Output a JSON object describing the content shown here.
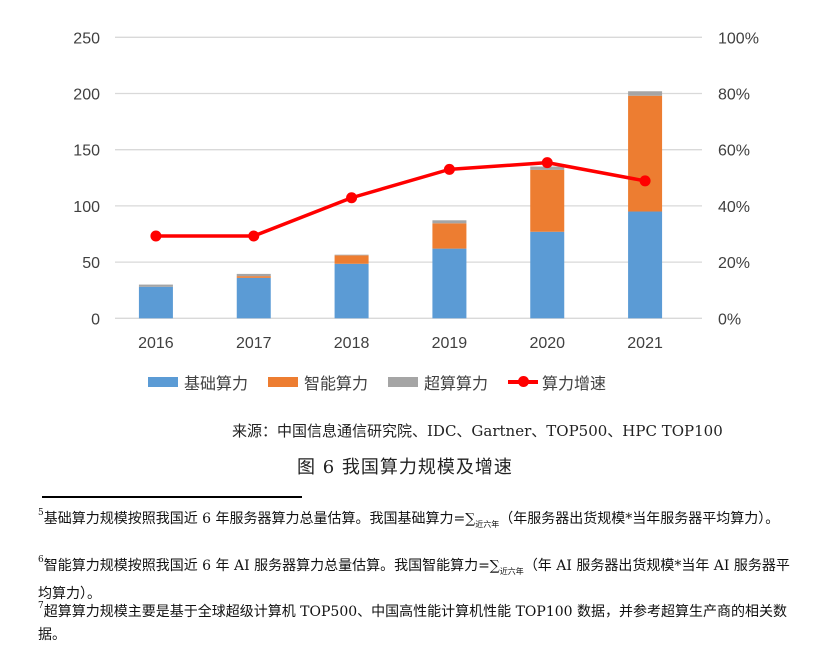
{
  "chart_data": {
    "type": "bar",
    "stacked": true,
    "categories": [
      "2016",
      "2017",
      "2018",
      "2019",
      "2020",
      "2021"
    ],
    "series": [
      {
        "name": "基础算力",
        "type": "bar",
        "axis": "left",
        "color": "#5b9bd5",
        "values": [
          28,
          36,
          48.5,
          62,
          77,
          95
        ]
      },
      {
        "name": "智能算力",
        "type": "bar",
        "axis": "left",
        "color": "#ed7d31",
        "values": [
          0,
          1.5,
          7.5,
          22.5,
          55,
          103
        ]
      },
      {
        "name": "超算算力",
        "type": "bar",
        "axis": "left",
        "color": "#a5a5a5",
        "values": [
          2,
          2,
          0.6,
          2.7,
          3,
          4
        ]
      },
      {
        "name": "算力增速",
        "type": "line",
        "axis": "right",
        "color": "#ff0000",
        "values": [
          29.3,
          29.3,
          42.9,
          53,
          55.4,
          48.9
        ]
      }
    ],
    "ylim": [
      0,
      250
    ],
    "yticks": [
      "0",
      "50",
      "100",
      "150",
      "200",
      "250"
    ],
    "y2lim": [
      0,
      100
    ],
    "y2ticks": [
      "0%",
      "20%",
      "40%",
      "60%",
      "80%",
      "100%"
    ],
    "grid": true,
    "legend": "bottom"
  },
  "source": "来源：中国信息通信研究院、IDC、Gartner、TOP500、HPC TOP100",
  "caption": "图 6 我国算力规模及增速",
  "footnotes": [
    {
      "num": "5",
      "before": "基础算力规模按照我国近 6 年服务器算力总量估算。我国基础算力=∑",
      "sub": "近六年",
      "after": "（年服务器出货规模*当年服务器平均算力）。"
    },
    {
      "num": "6",
      "before": "智能算力规模按照我国近 6 年 AI 服务器算力总量估算。我国智能算力=∑",
      "sub": "近六年",
      "after": "（年 AI 服务器出货规模*当年 AI 服务器平均算力）。"
    },
    {
      "num": "7",
      "before": "超算算力规模主要是基于全球超级计算机 TOP500、中国高性能计算机性能 TOP100 数据，并参考超算生产商的相关数据。",
      "sub": "",
      "after": ""
    }
  ]
}
